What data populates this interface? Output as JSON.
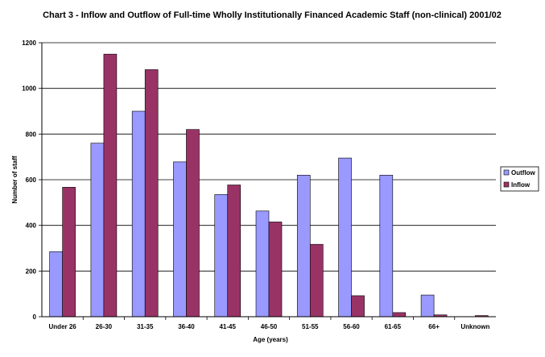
{
  "chart_data": {
    "type": "bar",
    "title": "Chart 3 - Inflow and Outflow of Full-time Wholly Institutionally Financed Academic Staff (non-clinical) 2001/02",
    "xlabel": "Age (years)",
    "ylabel": "Number of staff",
    "ylim": [
      0,
      1200
    ],
    "yticks": [
      0,
      200,
      400,
      600,
      800,
      1000,
      1200
    ],
    "grid": true,
    "legend_position": "right",
    "categories": [
      "Under 26",
      "26-30",
      "31-35",
      "36-40",
      "41-45",
      "46-50",
      "51-55",
      "56-60",
      "61-65",
      "66+",
      "Unknown"
    ],
    "series": [
      {
        "name": "Outflow",
        "color": "#9999FF",
        "values": [
          285,
          760,
          900,
          678,
          535,
          463,
          620,
          695,
          620,
          95,
          0
        ]
      },
      {
        "name": "Inflow",
        "color": "#993366",
        "values": [
          567,
          1150,
          1082,
          820,
          577,
          415,
          317,
          92,
          18,
          8,
          5
        ]
      }
    ]
  }
}
